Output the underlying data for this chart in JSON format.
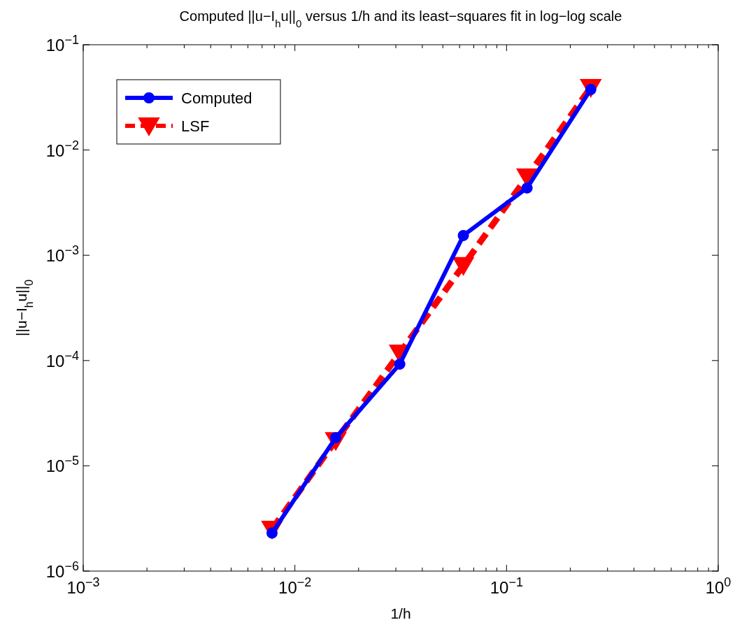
{
  "chart_data": {
    "type": "line",
    "title": "Computed ||u−I$_{h}$u||$_{0}$ versus 1/h and its least−squares fit in log−log scale",
    "xlabel": "1/h",
    "ylabel": "||u−I$_{h}$u||$_{0}$",
    "log": "xy",
    "grid": false,
    "legend": "top left",
    "x": [
      0.0078,
      0.0156,
      0.0313,
      0.0625,
      0.125,
      0.25
    ],
    "xlim": [
      0.001,
      1
    ],
    "ylim": [
      1e-06,
      0.1
    ],
    "xticks": [
      {
        "value": 0.001,
        "label": "10$^{−3}$"
      },
      {
        "value": 0.002,
        "label": null
      },
      {
        "value": 0.003,
        "label": null
      },
      {
        "value": 0.004,
        "label": null
      },
      {
        "value": 0.005,
        "label": null
      },
      {
        "value": 0.006,
        "label": null
      },
      {
        "value": 0.007,
        "label": null
      },
      {
        "value": 0.008,
        "label": null
      },
      {
        "value": 0.009,
        "label": null
      },
      {
        "value": 0.01,
        "label": "10$^{−2}$"
      },
      {
        "value": 0.02,
        "label": null
      },
      {
        "value": 0.03,
        "label": null
      },
      {
        "value": 0.04,
        "label": null
      },
      {
        "value": 0.05,
        "label": null
      },
      {
        "value": 0.06,
        "label": null
      },
      {
        "value": 0.07,
        "label": null
      },
      {
        "value": 0.08,
        "label": null
      },
      {
        "value": 0.09,
        "label": null
      },
      {
        "value": 0.1,
        "label": "10$^{−1}$"
      },
      {
        "value": 0.2,
        "label": null
      },
      {
        "value": 0.3,
        "label": null
      },
      {
        "value": 0.4,
        "label": null
      },
      {
        "value": 0.5,
        "label": null
      },
      {
        "value": 0.6,
        "label": null
      },
      {
        "value": 0.7,
        "label": null
      },
      {
        "value": 0.8,
        "label": null
      },
      {
        "value": 0.9,
        "label": null
      },
      {
        "value": 1,
        "label": "10$^{0}$"
      }
    ],
    "yticks": [
      {
        "value": 1e-06,
        "label": "10$^{−6}$"
      },
      {
        "value": 1e-05,
        "label": "10$^{−5}$"
      },
      {
        "value": 0.0001,
        "label": "10$^{−4}$"
      },
      {
        "value": 0.001,
        "label": "10$^{−3}$"
      },
      {
        "value": 0.01,
        "label": "10$^{−2}$"
      },
      {
        "value": 0.1,
        "label": "10$^{−1}$"
      }
    ],
    "series": [
      {
        "name": "Computed",
        "color": "#0000ff",
        "marker": "circle",
        "line_style": "solid",
        "values": [
          2.3e-06,
          1.85e-05,
          9.25e-05,
          0.00154,
          0.00436,
          0.0376
        ]
      },
      {
        "name": "LSF",
        "color": "#ff0000",
        "marker": "triangle",
        "line_style": "dashed",
        "values": [
          2.5e-06,
          1.74e-05,
          0.000118,
          0.0008,
          0.00556,
          0.0393
        ]
      }
    ]
  }
}
